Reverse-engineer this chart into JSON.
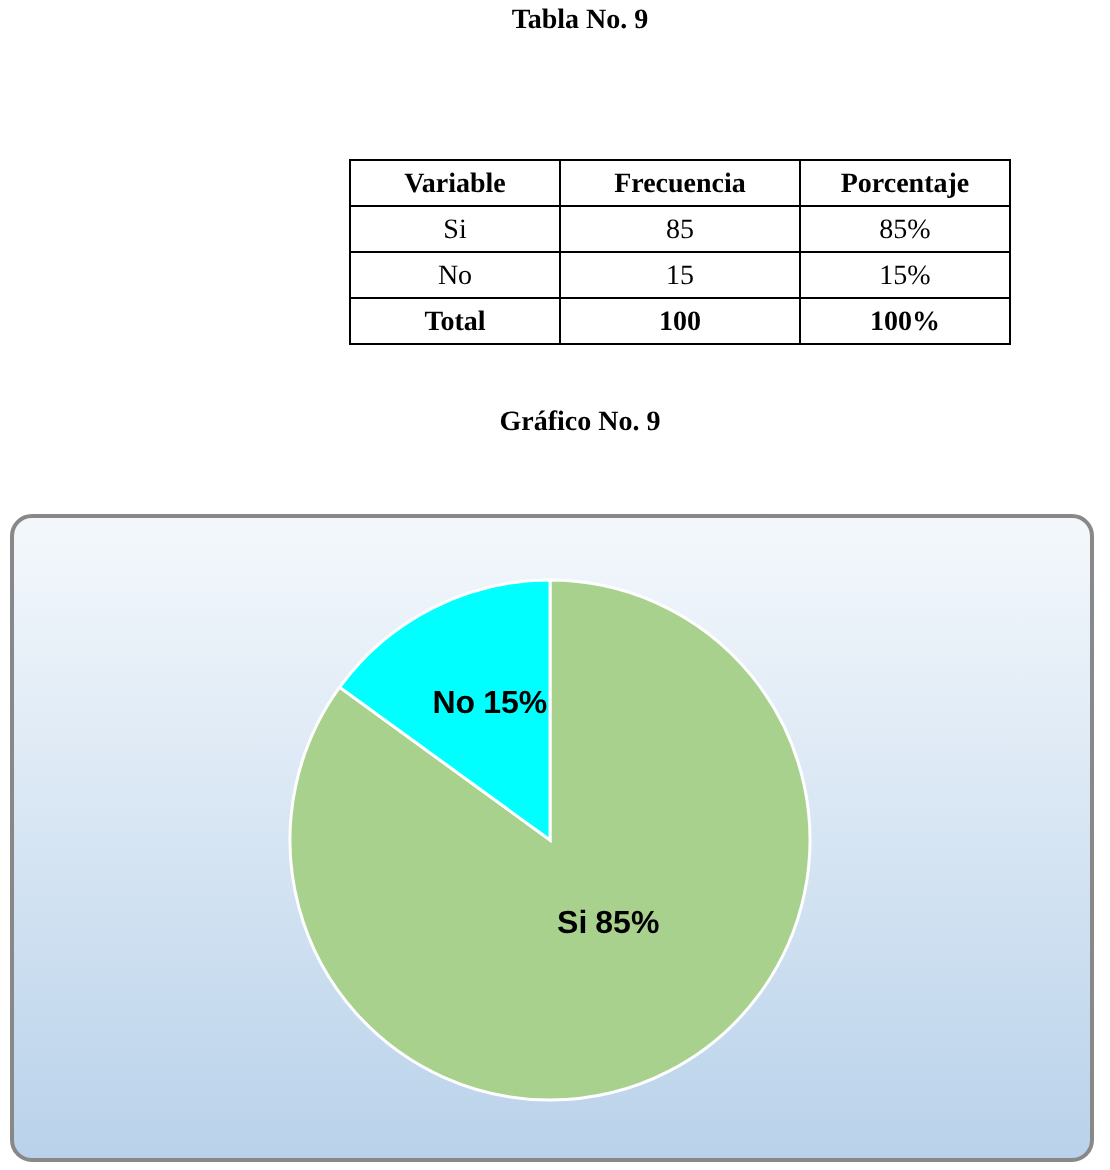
{
  "chart_data": {
    "type": "pie",
    "title": "Gráfico No. 9",
    "categories": [
      "Si",
      "No"
    ],
    "values": [
      85,
      15
    ],
    "colors": [
      "#a9d18e",
      "#00ffff"
    ],
    "value_labels": [
      "85%",
      "15%"
    ],
    "annotations": [
      "Tabla No. 9",
      "Variable",
      "Frecuencia",
      "Porcentaje",
      "Si",
      "85",
      "85%",
      "No",
      "15",
      "15%",
      "Total",
      "100",
      "100%"
    ]
  }
}
